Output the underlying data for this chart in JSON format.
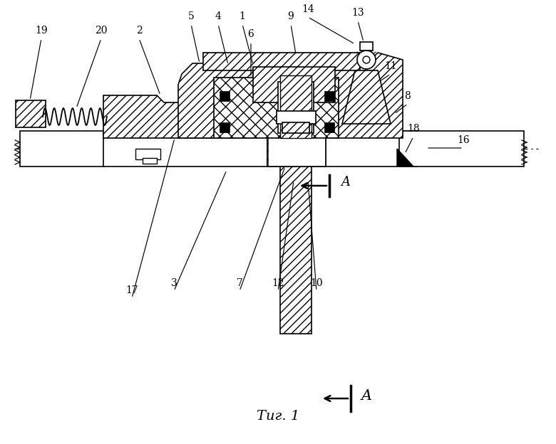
{
  "bg": "#ffffff",
  "lc": "#000000",
  "figsize": [
    7.8,
    6.24
  ],
  "dpi": 100,
  "caption": "Τиг. 1",
  "section_label": "A"
}
